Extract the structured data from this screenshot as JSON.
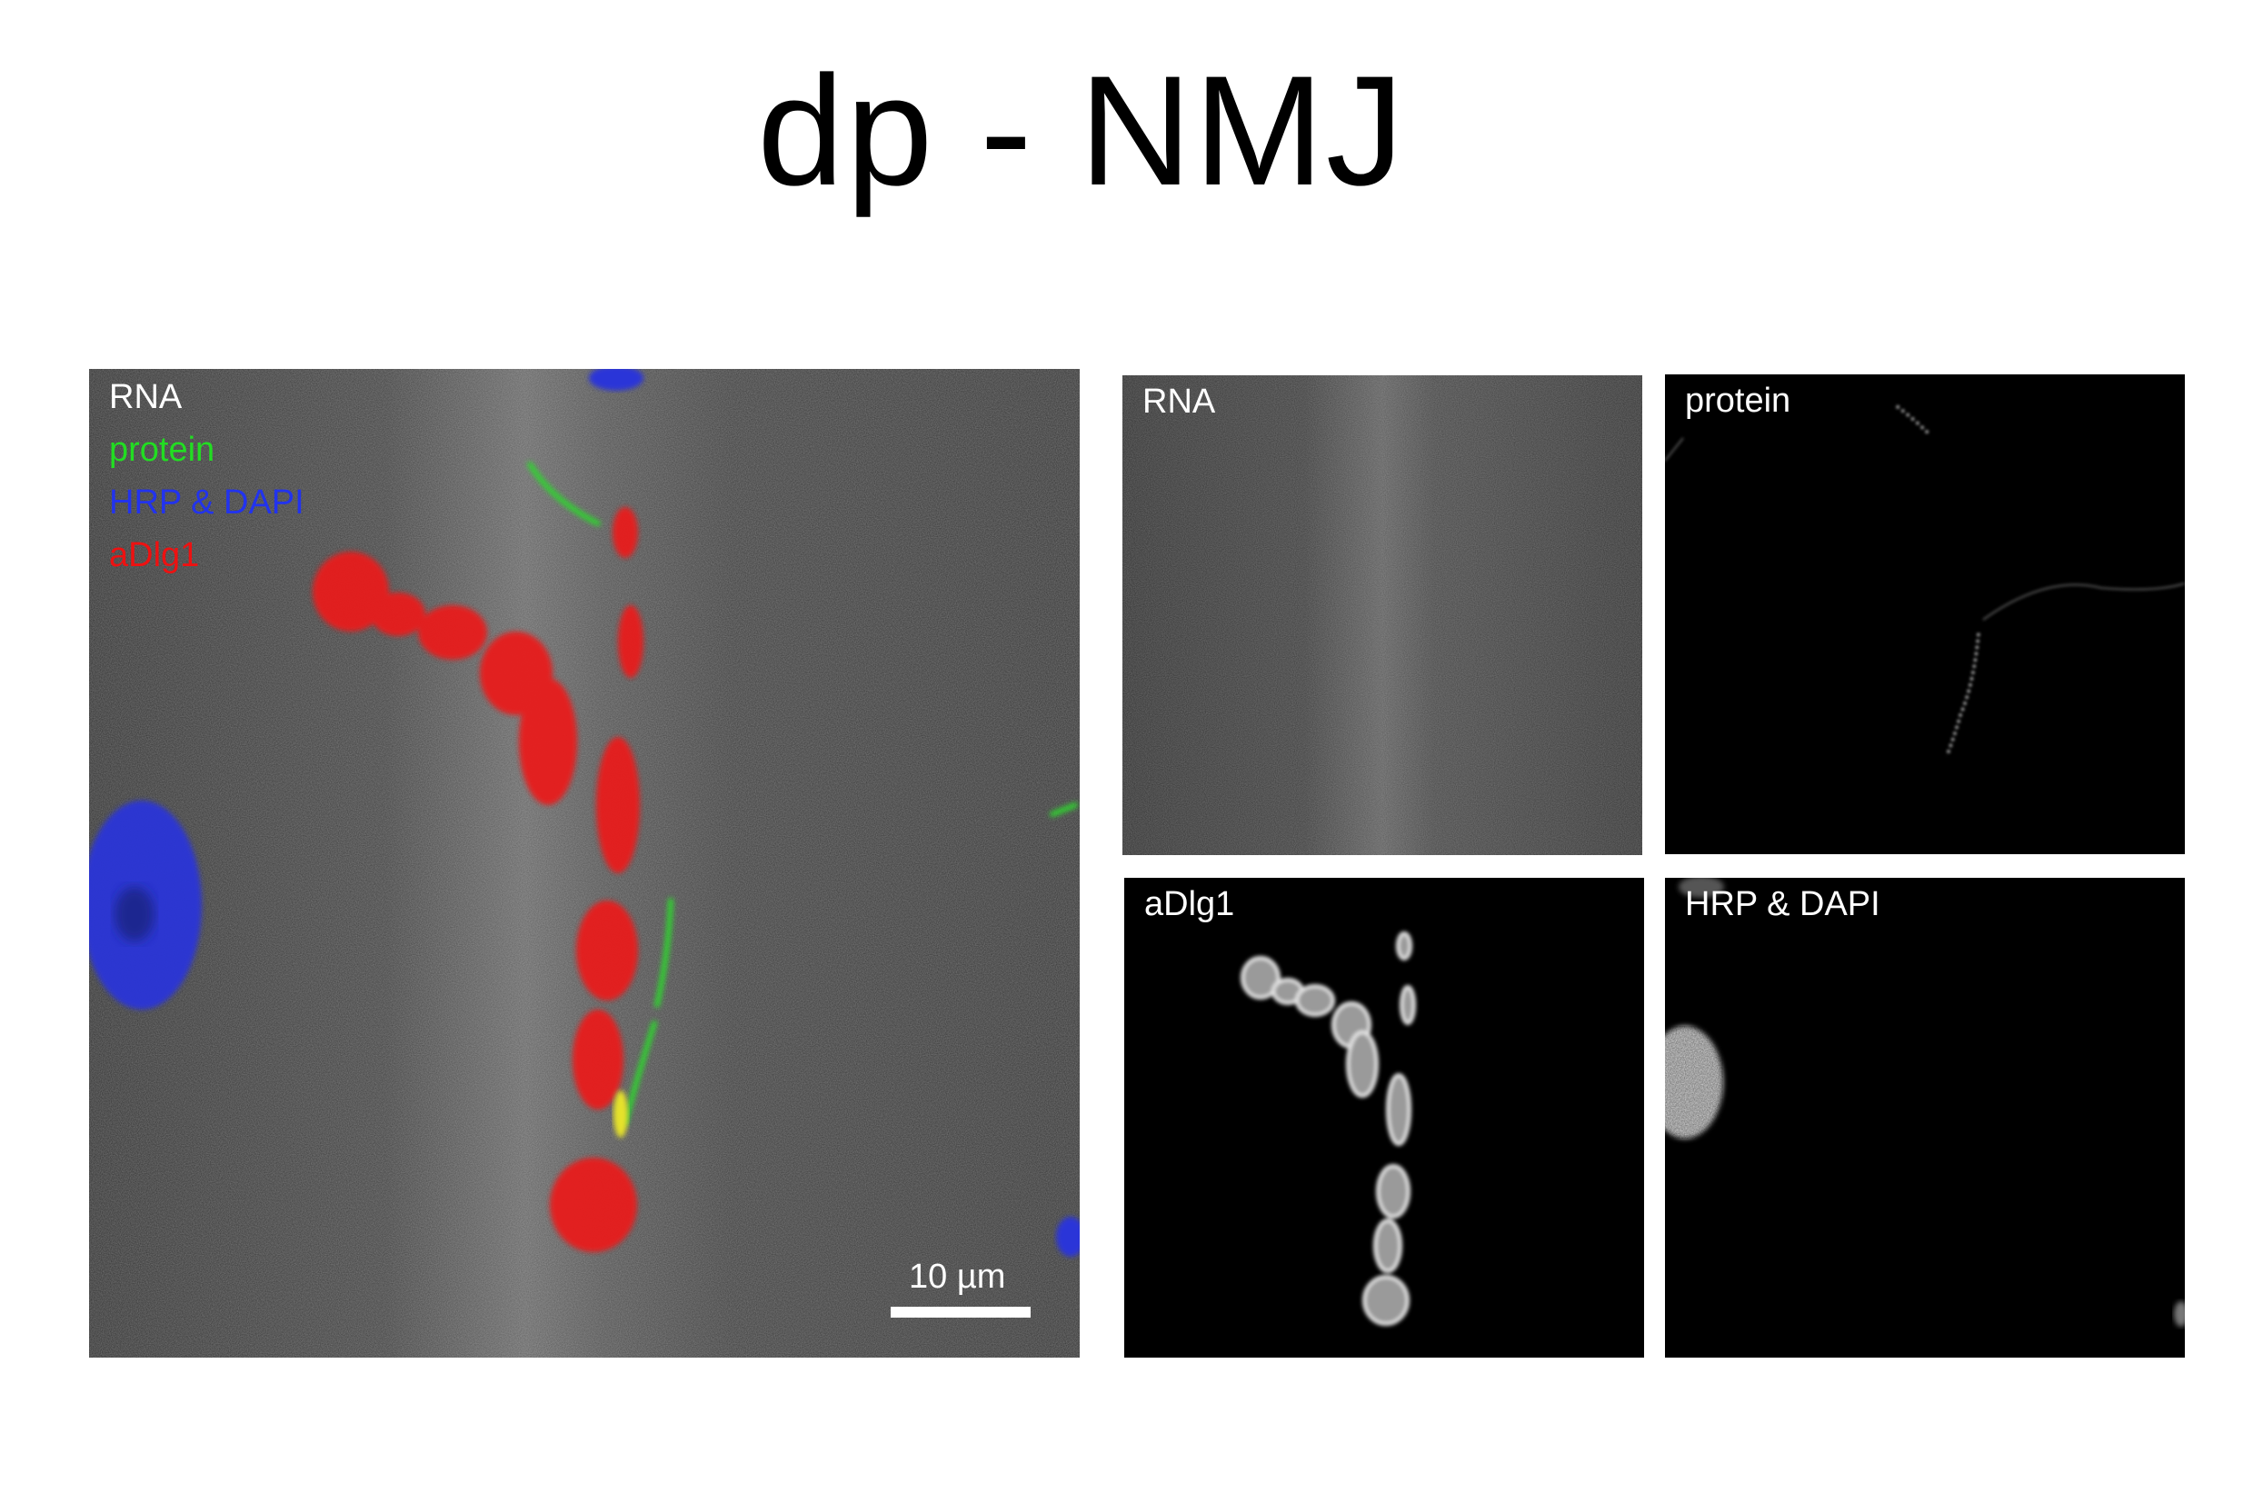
{
  "figure": {
    "title": "dp - NMJ"
  },
  "main_panel": {
    "legend": [
      {
        "text": "RNA",
        "color": "#ffffff"
      },
      {
        "text": "protein",
        "color": "#22dd22"
      },
      {
        "text": "HRP & DAPI",
        "color": "#2233ee"
      },
      {
        "text": "aDlg1",
        "color": "#ee1111"
      }
    ],
    "scale_bar_label": "10 µm"
  },
  "small_panels": {
    "rna": "RNA",
    "protein": "protein",
    "adlg1": "aDlg1",
    "hrp_dapi": "HRP & DAPI"
  }
}
